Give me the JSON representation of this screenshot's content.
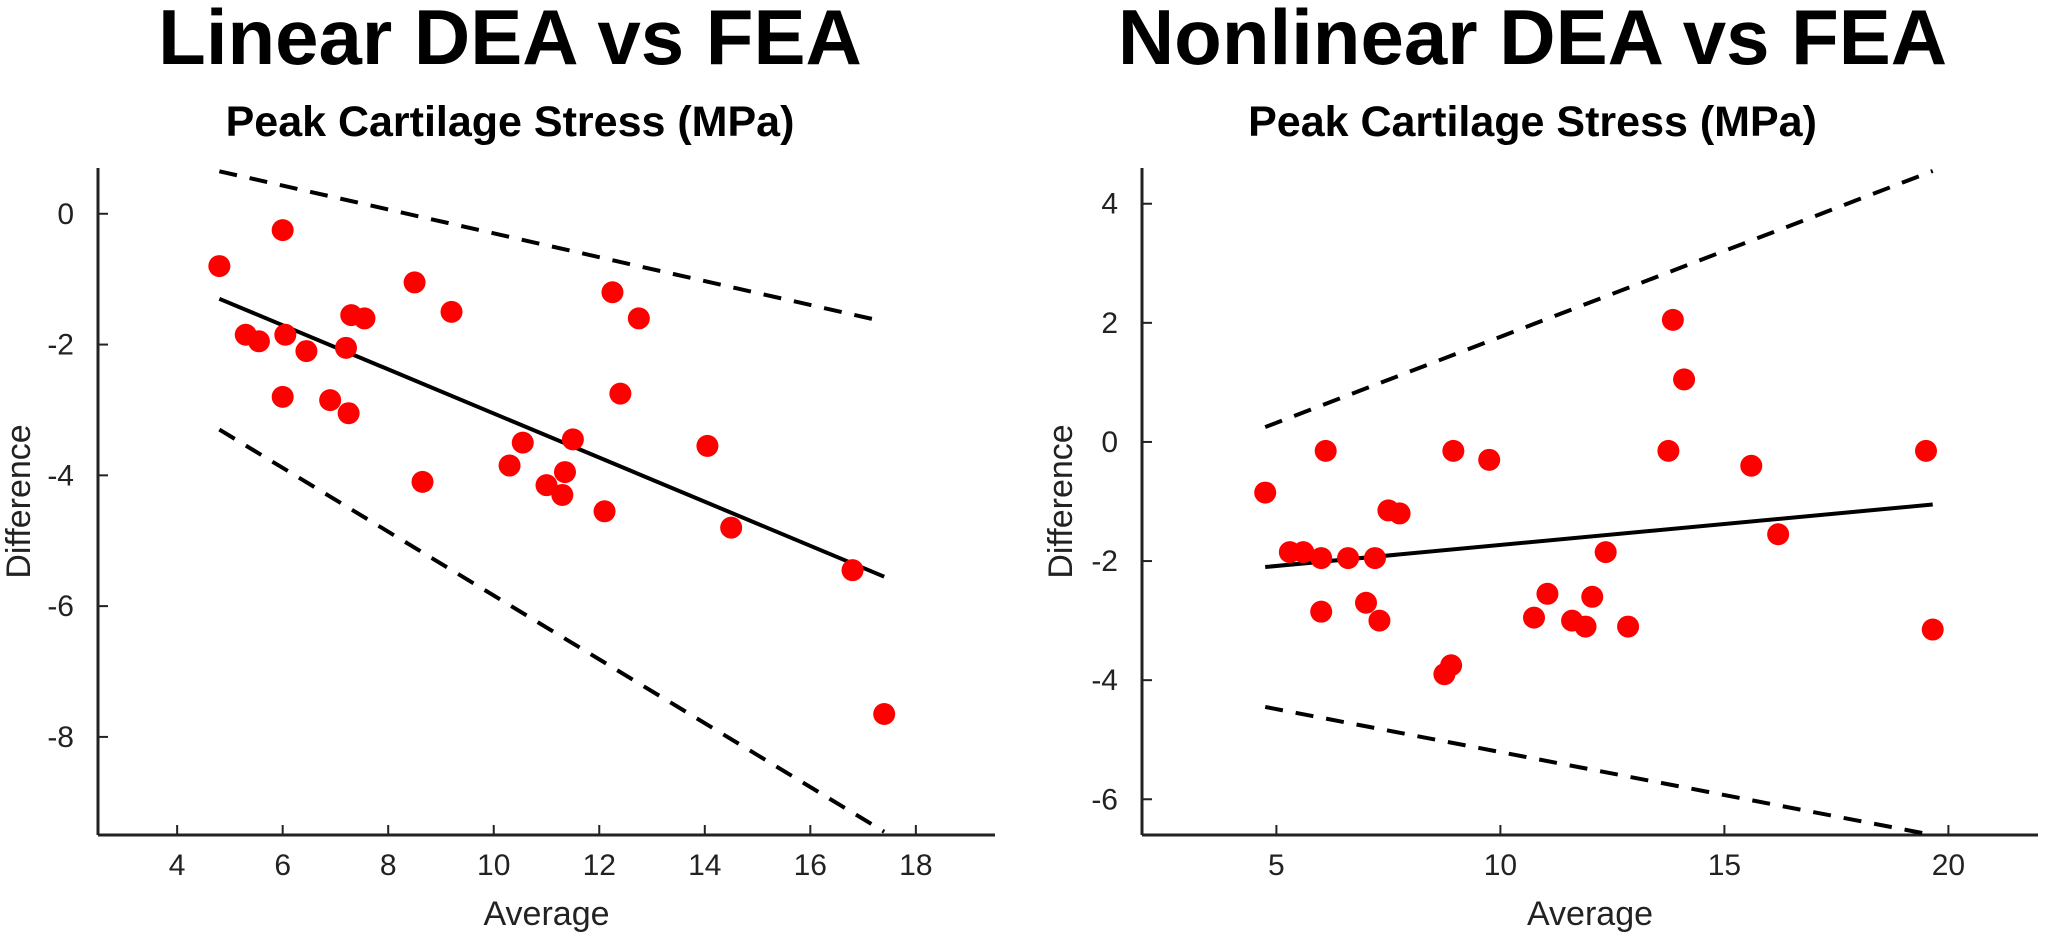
{
  "chart_data": [
    {
      "type": "scatter",
      "title": "Linear DEA vs FEA",
      "subtitle": "Peak Cartilage Stress (MPa)",
      "xlabel": "Average",
      "ylabel": "Difference",
      "xlim": [
        2.5,
        19.5
      ],
      "ylim": [
        -9.5,
        0.7
      ],
      "xticks": [
        4,
        6,
        8,
        10,
        12,
        14,
        16,
        18
      ],
      "yticks": [
        0,
        -2,
        -4,
        -6,
        -8
      ],
      "point_color": "#ff0000",
      "points": [
        [
          4.8,
          -0.8
        ],
        [
          5.3,
          -1.85
        ],
        [
          5.55,
          -1.95
        ],
        [
          6.0,
          -0.25
        ],
        [
          6.05,
          -1.85
        ],
        [
          6.0,
          -2.8
        ],
        [
          6.45,
          -2.1
        ],
        [
          6.9,
          -2.85
        ],
        [
          7.2,
          -2.05
        ],
        [
          7.25,
          -3.05
        ],
        [
          7.3,
          -1.55
        ],
        [
          7.55,
          -1.6
        ],
        [
          8.5,
          -1.05
        ],
        [
          8.65,
          -4.1
        ],
        [
          9.2,
          -1.5
        ],
        [
          10.3,
          -3.85
        ],
        [
          10.55,
          -3.5
        ],
        [
          11.0,
          -4.15
        ],
        [
          11.3,
          -4.3
        ],
        [
          11.35,
          -3.95
        ],
        [
          11.5,
          -3.45
        ],
        [
          12.1,
          -4.55
        ],
        [
          12.25,
          -1.2
        ],
        [
          12.4,
          -2.75
        ],
        [
          12.75,
          -1.6
        ],
        [
          14.05,
          -3.55
        ],
        [
          14.5,
          -4.8
        ],
        [
          16.8,
          -5.45
        ],
        [
          17.4,
          -7.65
        ]
      ],
      "regression_line": [
        [
          4.8,
          -1.3
        ],
        [
          17.4,
          -5.55
        ]
      ],
      "upper_limit": [
        [
          4.8,
          0.65
        ],
        [
          17.4,
          -1.65
        ]
      ],
      "lower_limit": [
        [
          4.8,
          -3.3
        ],
        [
          17.4,
          -9.45
        ]
      ]
    },
    {
      "type": "scatter",
      "title": "Nonlinear DEA vs FEA",
      "subtitle": "Peak Cartilage Stress (MPa)",
      "xlabel": "Average",
      "ylabel": "Difference",
      "xlim": [
        2.0,
        22.0
      ],
      "ylim": [
        -6.6,
        4.6
      ],
      "xticks": [
        5,
        10,
        15,
        20
      ],
      "yticks": [
        4,
        2,
        0,
        -2,
        -4,
        -6
      ],
      "point_color": "#ff0000",
      "points": [
        [
          4.75,
          -0.85
        ],
        [
          5.3,
          -1.85
        ],
        [
          5.6,
          -1.85
        ],
        [
          6.0,
          -1.95
        ],
        [
          6.0,
          -2.85
        ],
        [
          6.1,
          -0.15
        ],
        [
          6.6,
          -1.95
        ],
        [
          7.0,
          -2.7
        ],
        [
          7.2,
          -1.95
        ],
        [
          7.3,
          -3.0
        ],
        [
          7.5,
          -1.15
        ],
        [
          7.75,
          -1.2
        ],
        [
          8.75,
          -3.9
        ],
        [
          8.9,
          -3.75
        ],
        [
          8.95,
          -0.15
        ],
        [
          9.75,
          -0.3
        ],
        [
          10.75,
          -2.95
        ],
        [
          11.05,
          -2.55
        ],
        [
          11.6,
          -3.0
        ],
        [
          11.9,
          -3.1
        ],
        [
          12.05,
          -2.6
        ],
        [
          12.35,
          -1.85
        ],
        [
          12.85,
          -3.1
        ],
        [
          13.75,
          -0.15
        ],
        [
          13.85,
          2.05
        ],
        [
          14.1,
          1.05
        ],
        [
          15.6,
          -0.4
        ],
        [
          16.2,
          -1.55
        ],
        [
          19.5,
          -0.15
        ],
        [
          19.65,
          -3.15
        ]
      ],
      "regression_line": [
        [
          4.75,
          -2.1
        ],
        [
          19.65,
          -1.05
        ]
      ],
      "upper_limit": [
        [
          4.75,
          0.25
        ],
        [
          19.65,
          4.55
        ]
      ],
      "lower_limit": [
        [
          4.75,
          -4.45
        ],
        [
          19.65,
          -6.6
        ]
      ]
    }
  ]
}
